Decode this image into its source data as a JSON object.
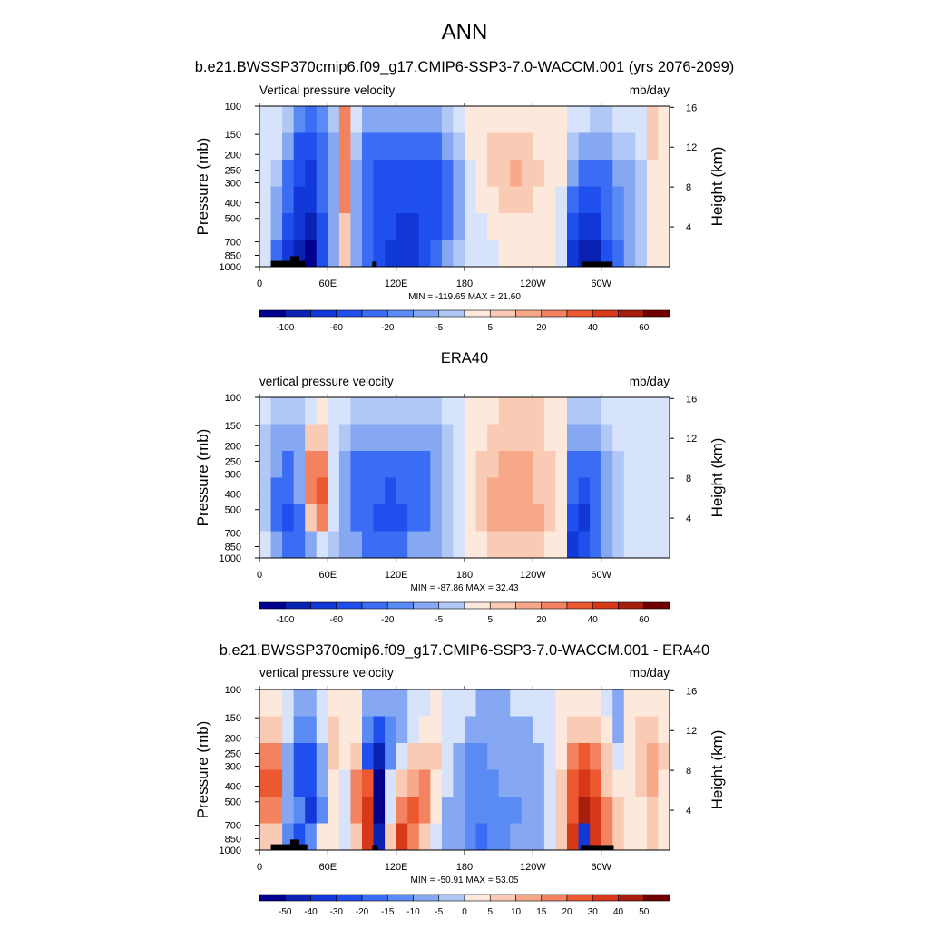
{
  "figure": {
    "title": "ANN"
  },
  "chart_data": [
    {
      "type": "heatmap",
      "title": "b.e21.BWSSP370cmip6.f09_g17.CMIP6-SSP3-7.0-WACCM.001 (yrs 2076-2099)",
      "left_label": "Vertical pressure velocity",
      "right_label": "mb/day",
      "xlabel": "",
      "ylabel": "Pressure (mb)",
      "ylabel_right": "Height (km)",
      "x_ticks": [
        "0",
        "60E",
        "120E",
        "180",
        "120W",
        "60W"
      ],
      "x_tick_values": [
        0,
        60,
        120,
        180,
        240,
        300
      ],
      "xlim": [
        0,
        360
      ],
      "y_ticks": [
        "100",
        "150",
        "200",
        "250",
        "300",
        "400",
        "500",
        "700",
        "850",
        "1000"
      ],
      "y_tick_values": [
        100,
        150,
        200,
        250,
        300,
        400,
        500,
        700,
        850,
        1000
      ],
      "ylim": [
        1000,
        100
      ],
      "y_scale": "log",
      "height_ticks": [
        "16",
        "12",
        "8",
        "4"
      ],
      "height_tick_values": [
        16,
        12,
        8,
        4
      ],
      "stats": "MIN = -119.65  MAX =  21.60",
      "colorbar": {
        "labels": [
          "-100",
          "-60",
          "-20",
          "-5",
          "5",
          "20",
          "40",
          "60"
        ],
        "label_boundaries": [
          1,
          3,
          5,
          7,
          9,
          11,
          13,
          15
        ],
        "n_colors": 16,
        "placement": "bottom"
      },
      "cells": [
        [
          0,
          -5,
          -10,
          -30,
          -40,
          -30,
          -10,
          20,
          -5,
          -20,
          -20,
          -20,
          -20,
          -20,
          -20,
          -20,
          -10,
          -5,
          5,
          5,
          5,
          5,
          5,
          5,
          5,
          5,
          5,
          -5,
          -5,
          -10,
          -10,
          -5,
          -5,
          -5,
          10,
          5
        ],
        [
          0,
          -5,
          -20,
          -60,
          -60,
          -40,
          -20,
          20,
          -10,
          -40,
          -40,
          -40,
          -40,
          -40,
          -40,
          -40,
          -20,
          -10,
          5,
          5,
          10,
          10,
          10,
          10,
          5,
          5,
          5,
          -10,
          -20,
          -20,
          -20,
          -10,
          -10,
          -5,
          10,
          5
        ],
        [
          0,
          -10,
          -40,
          -60,
          -80,
          -40,
          -20,
          20,
          -20,
          -40,
          -60,
          -60,
          -60,
          -60,
          -60,
          -60,
          -40,
          -20,
          0,
          5,
          10,
          10,
          15,
          10,
          10,
          5,
          5,
          -20,
          -40,
          -40,
          -40,
          -20,
          -20,
          -10,
          5,
          5
        ],
        [
          -5,
          -20,
          -40,
          -80,
          -80,
          -40,
          -20,
          20,
          -20,
          -40,
          -60,
          -60,
          -60,
          -60,
          -60,
          -60,
          -40,
          -20,
          -5,
          5,
          5,
          10,
          10,
          10,
          5,
          5,
          0,
          -40,
          -60,
          -60,
          -40,
          -30,
          -20,
          -10,
          5,
          5
        ],
        [
          -5,
          -20,
          -60,
          -80,
          -100,
          -60,
          -20,
          10,
          -20,
          -40,
          -60,
          -60,
          -80,
          -80,
          -60,
          -60,
          -40,
          -20,
          -5,
          0,
          5,
          5,
          5,
          5,
          5,
          5,
          0,
          -60,
          -80,
          -80,
          -40,
          -30,
          -20,
          -10,
          5,
          5
        ],
        [
          -5,
          -40,
          -80,
          -100,
          -120,
          -60,
          -20,
          10,
          -20,
          -40,
          -60,
          -80,
          -80,
          -80,
          -60,
          -40,
          -20,
          -10,
          -5,
          -5,
          0,
          5,
          5,
          5,
          5,
          5,
          -5,
          -80,
          -100,
          -100,
          -60,
          -40,
          -20,
          -10,
          5,
          5
        ]
      ],
      "terrain": [
        {
          "lon_start": 10,
          "lon_end": 40,
          "p_top": 920
        },
        {
          "lon_start": 27,
          "lon_end": 35,
          "p_top": 860
        },
        {
          "lon_start": 99,
          "lon_end": 103,
          "p_top": 930
        },
        {
          "lon_start": 283,
          "lon_end": 310,
          "p_top": 930
        }
      ]
    },
    {
      "type": "heatmap",
      "title": "ERA40",
      "left_label": "vertical pressure velocity",
      "right_label": "mb/day",
      "xlabel": "",
      "ylabel": "Pressure (mb)",
      "ylabel_right": "Height (km)",
      "x_ticks": [
        "0",
        "60E",
        "120E",
        "180",
        "120W",
        "60W"
      ],
      "x_tick_values": [
        0,
        60,
        120,
        180,
        240,
        300
      ],
      "xlim": [
        0,
        360
      ],
      "y_ticks": [
        "100",
        "150",
        "200",
        "250",
        "300",
        "400",
        "500",
        "700",
        "850",
        "1000"
      ],
      "y_tick_values": [
        100,
        150,
        200,
        250,
        300,
        400,
        500,
        700,
        850,
        1000
      ],
      "ylim": [
        1000,
        100
      ],
      "y_scale": "log",
      "height_ticks": [
        "16",
        "12",
        "8",
        "4"
      ],
      "height_tick_values": [
        16,
        12,
        8,
        4
      ],
      "stats": "MIN = -87.86  MAX =  32.43",
      "colorbar": {
        "labels": [
          "-100",
          "-60",
          "-20",
          "-5",
          "5",
          "20",
          "40",
          "60"
        ],
        "label_boundaries": [
          1,
          3,
          5,
          7,
          9,
          11,
          13,
          15
        ],
        "n_colors": 16,
        "placement": "bottom"
      },
      "cells": [
        [
          -5,
          -10,
          -10,
          -10,
          0,
          5,
          0,
          -5,
          -10,
          -10,
          -10,
          -10,
          -10,
          -10,
          -10,
          -10,
          -5,
          -5,
          5,
          5,
          5,
          10,
          10,
          10,
          10,
          5,
          5,
          -10,
          -10,
          -10,
          -5,
          -5,
          -5,
          -5,
          -5,
          -5
        ],
        [
          -10,
          -20,
          -20,
          -20,
          10,
          10,
          -5,
          -10,
          -20,
          -20,
          -20,
          -20,
          -20,
          -20,
          -20,
          -20,
          -10,
          -5,
          5,
          5,
          10,
          10,
          10,
          10,
          10,
          5,
          5,
          -20,
          -20,
          -20,
          -10,
          -5,
          -5,
          -5,
          -5,
          -5
        ],
        [
          -10,
          -20,
          -40,
          -20,
          20,
          20,
          -5,
          -20,
          -40,
          -40,
          -40,
          -40,
          -40,
          -40,
          -40,
          -20,
          -10,
          -5,
          5,
          10,
          10,
          15,
          15,
          15,
          10,
          10,
          5,
          -40,
          -40,
          -40,
          -20,
          -10,
          -5,
          -5,
          -5,
          -5
        ],
        [
          -10,
          -40,
          -40,
          -20,
          20,
          30,
          -5,
          -20,
          -40,
          -40,
          -40,
          -60,
          -40,
          -40,
          -40,
          -20,
          -10,
          -5,
          5,
          10,
          15,
          15,
          15,
          15,
          10,
          10,
          5,
          -40,
          -60,
          -40,
          -20,
          -10,
          -5,
          -5,
          -5,
          -5
        ],
        [
          -10,
          -40,
          -60,
          -40,
          10,
          20,
          -5,
          -20,
          -40,
          -40,
          -60,
          -60,
          -60,
          -40,
          -40,
          -20,
          -10,
          -5,
          5,
          10,
          15,
          15,
          15,
          15,
          15,
          10,
          5,
          -60,
          -80,
          -40,
          -20,
          -10,
          -5,
          -5,
          -5,
          -5
        ],
        [
          -5,
          -20,
          -40,
          -40,
          -20,
          -5,
          -10,
          -20,
          -20,
          -40,
          -40,
          -40,
          -40,
          -20,
          -20,
          -20,
          -10,
          -5,
          5,
          5,
          10,
          10,
          10,
          10,
          10,
          5,
          5,
          -80,
          -60,
          -40,
          -20,
          -10,
          -5,
          -5,
          -5,
          -5
        ]
      ],
      "terrain": []
    },
    {
      "type": "heatmap",
      "title": "b.e21.BWSSP370cmip6.f09_g17.CMIP6-SSP3-7.0-WACCM.001 - ERA40",
      "left_label": "vertical pressure velocity",
      "right_label": "mb/day",
      "xlabel": "",
      "ylabel": "Pressure (mb)",
      "ylabel_right": "Height (km)",
      "x_ticks": [
        "0",
        "60E",
        "120E",
        "180",
        "120W",
        "60W"
      ],
      "x_tick_values": [
        0,
        60,
        120,
        180,
        240,
        300
      ],
      "xlim": [
        0,
        360
      ],
      "y_ticks": [
        "100",
        "150",
        "200",
        "250",
        "300",
        "400",
        "500",
        "700",
        "850",
        "1000"
      ],
      "y_tick_values": [
        100,
        150,
        200,
        250,
        300,
        400,
        500,
        700,
        850,
        1000
      ],
      "ylim": [
        1000,
        100
      ],
      "y_scale": "log",
      "height_ticks": [
        "16",
        "12",
        "8",
        "4"
      ],
      "height_tick_values": [
        16,
        12,
        8,
        4
      ],
      "stats": "MIN = -50.91  MAX =  53.05",
      "colorbar": {
        "labels": [
          "-50",
          "-40",
          "-30",
          "-20",
          "-15",
          "-10",
          "-5",
          "0",
          "5",
          "10",
          "15",
          "20",
          "30",
          "40",
          "50"
        ],
        "label_boundaries": [
          1,
          2,
          3,
          4,
          5,
          6,
          7,
          8,
          9,
          10,
          11,
          12,
          13,
          14,
          15
        ],
        "n_colors": 16,
        "placement": "bottom"
      },
      "cells": [
        [
          5,
          5,
          0,
          -5,
          -5,
          0,
          5,
          5,
          5,
          -5,
          -5,
          -5,
          -5,
          0,
          0,
          5,
          0,
          0,
          0,
          -5,
          -5,
          -5,
          0,
          0,
          0,
          0,
          5,
          5,
          5,
          5,
          0,
          -5,
          5,
          5,
          5,
          5
        ],
        [
          10,
          10,
          0,
          -10,
          -10,
          0,
          10,
          5,
          5,
          -10,
          -20,
          -10,
          -5,
          0,
          5,
          5,
          0,
          0,
          -5,
          -5,
          -5,
          -5,
          -5,
          -5,
          0,
          0,
          5,
          10,
          10,
          10,
          5,
          -5,
          5,
          10,
          10,
          5
        ],
        [
          20,
          20,
          -5,
          -20,
          -20,
          -5,
          10,
          5,
          10,
          -20,
          -40,
          -10,
          0,
          10,
          10,
          10,
          0,
          -5,
          -10,
          -10,
          -5,
          -5,
          -5,
          -5,
          -5,
          0,
          5,
          20,
          30,
          20,
          10,
          0,
          5,
          10,
          15,
          10
        ],
        [
          30,
          30,
          -5,
          -20,
          -20,
          -5,
          5,
          0,
          20,
          30,
          -50,
          0,
          10,
          15,
          20,
          5,
          0,
          -5,
          -10,
          -10,
          -10,
          -5,
          -5,
          -5,
          -5,
          0,
          10,
          30,
          40,
          30,
          10,
          5,
          5,
          10,
          15,
          5
        ],
        [
          20,
          20,
          -5,
          -10,
          -30,
          -10,
          5,
          0,
          20,
          40,
          -50,
          0,
          20,
          30,
          20,
          5,
          -5,
          -5,
          -10,
          -10,
          -10,
          -10,
          -10,
          -5,
          -5,
          0,
          10,
          30,
          50,
          40,
          20,
          10,
          5,
          5,
          10,
          5
        ],
        [
          10,
          10,
          -10,
          -20,
          -10,
          5,
          5,
          0,
          10,
          40,
          -40,
          10,
          40,
          20,
          10,
          0,
          -5,
          -5,
          -10,
          -15,
          -10,
          -10,
          -5,
          -5,
          -5,
          0,
          10,
          40,
          -30,
          40,
          20,
          10,
          5,
          5,
          10,
          5
        ]
      ],
      "terrain": [
        {
          "lon_start": 10,
          "lon_end": 42,
          "p_top": 920
        },
        {
          "lon_start": 27,
          "lon_end": 35,
          "p_top": 860
        },
        {
          "lon_start": 99,
          "lon_end": 104,
          "p_top": 930
        },
        {
          "lon_start": 282,
          "lon_end": 311,
          "p_top": 930
        }
      ]
    }
  ],
  "colors": {
    "palette": [
      "#00008c",
      "#0a22b4",
      "#1238d8",
      "#1f50ee",
      "#3a6cf4",
      "#5a8af4",
      "#86a8f2",
      "#b1c7f6",
      "#d6e3fa",
      "#fde9dc",
      "#f9cbb4",
      "#f6a888",
      "#f38260",
      "#ec5830",
      "#d63818",
      "#a81e0e",
      "#700000"
    ]
  }
}
